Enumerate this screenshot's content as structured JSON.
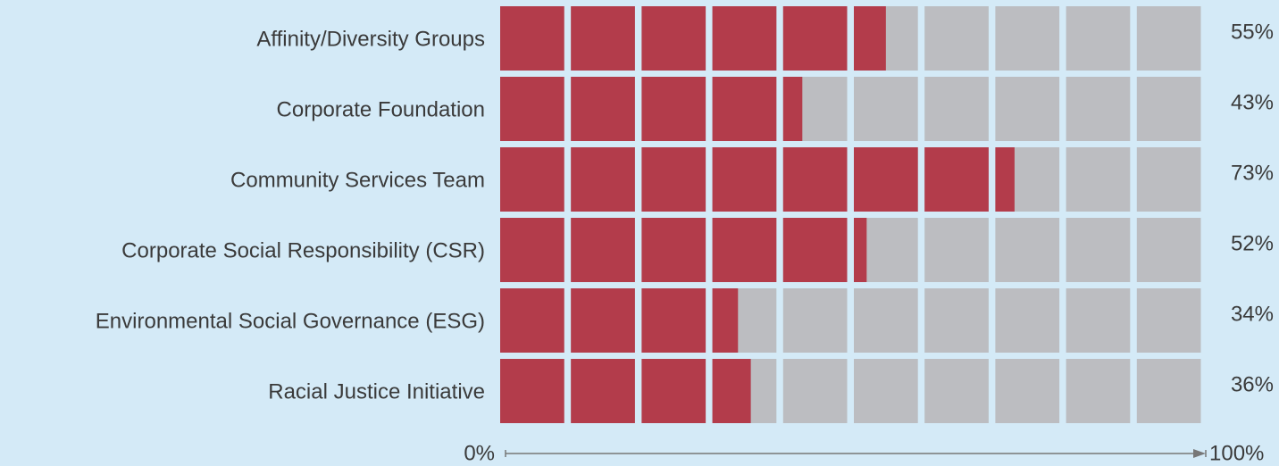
{
  "chart_data": {
    "type": "waffle-bar",
    "categories": [
      "Affinity/Diversity Groups",
      "Corporate Foundation",
      "Community Services Team",
      "Corporate Social Responsibility (CSR)",
      "Environmental Social Governance (ESG)",
      "Racial Justice Initiative"
    ],
    "values": [
      55,
      43,
      73,
      52,
      34,
      36
    ],
    "value_labels": [
      "55%",
      "43%",
      "73%",
      "52%",
      "34%",
      "36%"
    ],
    "color": "#b33c4b",
    "xlim": [
      0,
      100
    ],
    "xticks": [
      {
        "value": 0,
        "label": "0%"
      },
      {
        "value": 100,
        "label": "100%"
      }
    ]
  }
}
